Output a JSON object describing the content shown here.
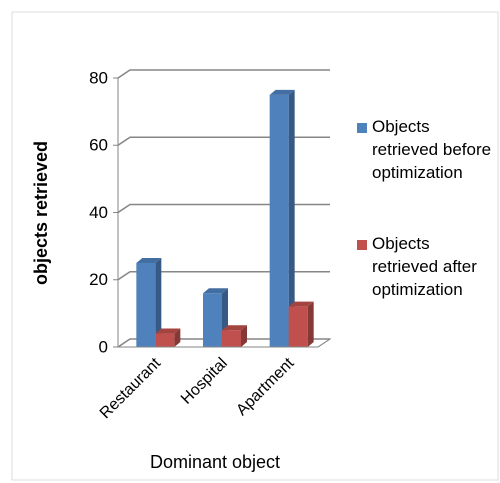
{
  "chart_data": {
    "type": "bar3d",
    "categories": [
      "Restaurant",
      "Hospital",
      "Apartment"
    ],
    "series": [
      {
        "name": "Objects retrieved before optimization",
        "color": "#4f81bd",
        "values": [
          25,
          16,
          75
        ]
      },
      {
        "name": "Objects retrieved after optimization",
        "color": "#c0504d",
        "values": [
          4,
          5,
          12
        ]
      }
    ],
    "ylabel": "objects retrieved",
    "xlabel": "Dominant object",
    "ylim": [
      0,
      80
    ],
    "yticks": [
      0,
      20,
      40,
      60,
      80
    ],
    "grid": true,
    "legend": "right"
  }
}
